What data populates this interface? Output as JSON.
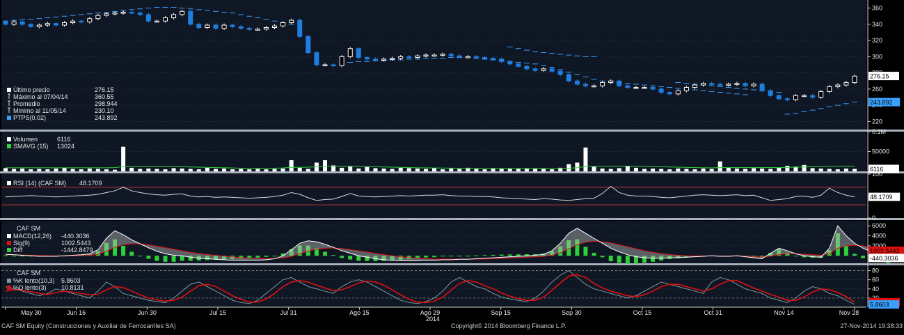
{
  "colors": {
    "background": "#000000",
    "panel": "#0f1624",
    "grid": "#3a4250",
    "separator": "#aab2bf",
    "candle_down": "#1e7fe0",
    "candle_up": "#ffffff",
    "ptps": "#3aa0ff",
    "volume_bar": "#ffffff",
    "smavg": "#2fd13a",
    "rsi_line": "#d9d9d9",
    "rsi_band": "#c03030",
    "macd_line": "#ffffff",
    "signal_line": "#e01010",
    "diff_bar": "#2fd13a",
    "k_line": "#7a9aa0",
    "d_line": "#e01010",
    "label_bg": "#ffffff",
    "label_bg_blue": "#3aa0ff",
    "label_bg_red": "#e01010",
    "label_bg_green": "#2fd13a"
  },
  "x_axis": {
    "labels": [
      "May 30",
      "Jun 16",
      "Jun 30",
      "Jul 15",
      "Jul 31",
      "Ago 15",
      "Ago 29",
      "Sep 15",
      "Sep 30",
      "Oct 15",
      "Oct 31",
      "Nov 14",
      "Nov 28"
    ],
    "year": "2014"
  },
  "footer": {
    "left": "CAF SM Equity (Construcciones y Auxiliar de Ferrocarriles SA)",
    "center": "Copyright© 2014 Bloomberg Finance L.P.",
    "right": "27-Nov-2014 19:38:33"
  },
  "chart_data": [
    {
      "type": "candlestick",
      "panel": "price",
      "ylim": [
        210,
        370
      ],
      "yticks": [
        "360",
        "340",
        "320",
        "300",
        "280",
        "260",
        "240",
        "220"
      ],
      "legend": [
        {
          "label": "Último precio",
          "value": "276.15",
          "icon": "box-white"
        },
        {
          "label": "Máximo al 07/04/14",
          "value": "360.55",
          "icon": "max"
        },
        {
          "label": "Promedio",
          "value": "298.944",
          "icon": "avg"
        },
        {
          "label": "Mínimo al 11/05/14",
          "value": "230.10",
          "icon": "min"
        },
        {
          "label": "PTPS(0.02)",
          "value": "243.892",
          "icon": "box-blue"
        }
      ],
      "last_value_label": "276.15",
      "ptps_value_label": "243.892",
      "close": [
        340,
        343,
        340,
        337,
        339,
        341,
        339,
        342,
        344,
        343,
        347,
        351,
        353,
        354,
        355,
        354,
        352,
        344,
        344,
        348,
        352,
        356,
        340,
        336,
        339,
        335,
        339,
        337,
        335,
        334,
        334,
        336,
        338,
        342,
        345,
        325,
        305,
        290,
        290,
        289,
        300,
        310,
        299,
        297,
        296,
        297,
        298,
        300,
        299,
        301,
        302,
        302,
        303,
        301,
        300,
        300,
        299,
        298,
        297,
        294,
        291,
        288,
        285,
        283,
        285,
        282,
        278,
        270,
        266,
        264,
        264,
        268,
        270,
        264,
        262,
        262,
        262,
        260,
        256,
        254,
        258,
        262,
        265,
        267,
        266,
        265,
        266,
        267,
        264,
        266,
        258,
        252,
        248,
        247,
        252,
        252,
        250,
        257,
        263,
        265,
        268,
        276
      ],
      "ptps": [
        344,
        345,
        346,
        346,
        347,
        348,
        349,
        350,
        351,
        352,
        353,
        354,
        355,
        356,
        357,
        358,
        359,
        360,
        361,
        361,
        361,
        360,
        359,
        358,
        357,
        356,
        355,
        354,
        352,
        350,
        348,
        346,
        344,
        342,
        340,
        "",
        "",
        "",
        "",
        "",
        "",
        293,
        294,
        294,
        295,
        295,
        296,
        296,
        297,
        297,
        298,
        298,
        298,
        299,
        299,
        "",
        298,
        297,
        296,
        295,
        294,
        293,
        292,
        291,
        289,
        287,
        284,
        281,
        278,
        275,
        272,
        270,
        269,
        268,
        267,
        266,
        265,
        264,
        263,
        262,
        261,
        260,
        259,
        258,
        257,
        256,
        255,
        254,
        253,
        "",
        "",
        "",
        "",
        229,
        230,
        232,
        234,
        236,
        238,
        240,
        242,
        244
      ],
      "ptps_upper_after": [
        312,
        310,
        308,
        306,
        305,
        304,
        303,
        302,
        301,
        300,
        300
      ],
      "ptps_upper_late": [
        268,
        267,
        266,
        265,
        264,
        263,
        262,
        261,
        260,
        259,
        258,
        257,
        256
      ]
    },
    {
      "type": "bar",
      "panel": "volume",
      "ylim": [
        0,
        100000
      ],
      "yticks": [
        "0.1M",
        "50000"
      ],
      "legend": [
        {
          "label": "Volumen",
          "value": "6116",
          "icon": "box-white"
        },
        {
          "label": "SMAVG (15)",
          "value": "13024",
          "icon": "box-green"
        }
      ],
      "last_value_label": "6116",
      "values": [
        8000,
        6000,
        7000,
        5000,
        6000,
        5000,
        7000,
        9000,
        6000,
        5000,
        7000,
        6000,
        5000,
        4000,
        62000,
        9000,
        6000,
        7000,
        6000,
        5000,
        8000,
        7000,
        6000,
        5000,
        9000,
        6000,
        7000,
        5000,
        6000,
        5000,
        6000,
        5000,
        6000,
        7000,
        28000,
        9000,
        6000,
        22000,
        28000,
        15000,
        9000,
        12000,
        7000,
        11000,
        8000,
        7000,
        6000,
        9000,
        8000,
        7000,
        6000,
        8000,
        5000,
        7000,
        6000,
        9000,
        6000,
        5000,
        8000,
        6000,
        7000,
        6000,
        8000,
        7000,
        6000,
        5000,
        9000,
        18000,
        22000,
        60000,
        12000,
        7000,
        6000,
        8000,
        14000,
        9000,
        6000,
        7000,
        6000,
        5000,
        7000,
        6000,
        5000,
        7000,
        6000,
        25000,
        9000,
        7000,
        6000,
        8000,
        7000,
        6000,
        9000,
        14000,
        12000,
        16000,
        8000,
        7000,
        6000,
        5000,
        7000,
        6116
      ],
      "smavg": [
        9000,
        9000,
        9000,
        9000,
        9000,
        9000,
        9000,
        9000,
        9000,
        9000,
        9000,
        9000,
        9000,
        9500,
        12000,
        12000,
        12000,
        12000,
        12000,
        12000,
        12000,
        11500,
        11000,
        10500,
        10000,
        9500,
        9000,
        8500,
        8000,
        8000,
        8000,
        8000,
        8000,
        8500,
        10000,
        10000,
        10500,
        11500,
        12500,
        13000,
        13000,
        13000,
        12500,
        12000,
        11500,
        11000,
        10500,
        10000,
        9500,
        9000,
        8800,
        8600,
        8400,
        8200,
        8000,
        7800,
        7600,
        7400,
        7200,
        7000,
        7000,
        7000,
        7000,
        7000,
        7000,
        7000,
        7200,
        8000,
        9000,
        12000,
        12500,
        12800,
        13000,
        13000,
        13200,
        13000,
        12500,
        12000,
        11500,
        11000,
        10500,
        10000,
        9500,
        9000,
        8800,
        9500,
        9500,
        9500,
        9500,
        9500,
        9500,
        9500,
        9500,
        10000,
        10500,
        11000,
        11500,
        12000,
        12500,
        13000,
        13024,
        13024
      ]
    },
    {
      "type": "line",
      "panel": "rsi",
      "ylim": [
        0,
        100
      ],
      "yticks": [
        "100",
        "50",
        "0"
      ],
      "bands": [
        70,
        30
      ],
      "legend": [
        {
          "label": "RSI (14) (CAF SM)",
          "value": "48.1709",
          "icon": "box-white"
        }
      ],
      "last_value_label": "48.1709",
      "values": [
        48,
        49,
        50,
        51,
        50,
        49,
        48,
        49,
        50,
        51,
        52,
        54,
        58,
        62,
        70,
        62,
        58,
        55,
        53,
        52,
        54,
        55,
        50,
        48,
        49,
        47,
        48,
        47,
        46,
        45,
        46,
        47,
        49,
        52,
        58,
        54,
        46,
        40,
        42,
        43,
        49,
        56,
        50,
        49,
        48,
        49,
        50,
        51,
        50,
        51,
        52,
        52,
        53,
        51,
        50,
        50,
        49,
        49,
        48,
        46,
        45,
        44,
        43,
        42,
        44,
        43,
        41,
        40,
        42,
        44,
        45,
        56,
        72,
        58,
        52,
        50,
        50,
        49,
        47,
        46,
        48,
        50,
        52,
        53,
        52,
        51,
        52,
        53,
        51,
        52,
        46,
        40,
        42,
        44,
        49,
        50,
        47,
        52,
        68,
        58,
        52,
        48
      ]
    },
    {
      "type": "line",
      "panel": "macd",
      "ylim": [
        -1500,
        7000
      ],
      "yticks": [
        "6000",
        "4000",
        "2000",
        "0"
      ],
      "title": "CAF SM",
      "legend": [
        {
          "label": "MACD(12,26)",
          "value": "-440.3036",
          "icon": "box-white"
        },
        {
          "label": "Sig(9)",
          "value": "1002.5443",
          "icon": "box-red"
        },
        {
          "label": "Diff",
          "value": "-1442.8479",
          "icon": "box-green"
        }
      ],
      "label_signal": "1002.5443",
      "label_macd": "-440.3036",
      "macd": [
        300,
        200,
        100,
        0,
        -100,
        -100,
        -100,
        0,
        100,
        200,
        400,
        1200,
        3500,
        5000,
        4200,
        3200,
        2400,
        1600,
        900,
        400,
        100,
        0,
        -300,
        -500,
        -600,
        -700,
        -800,
        -900,
        -900,
        -900,
        -900,
        -800,
        -600,
        0,
        1200,
        2500,
        3000,
        2800,
        2300,
        1700,
        1000,
        500,
        0,
        -300,
        -600,
        -800,
        -900,
        -1000,
        -1000,
        -1000,
        -900,
        -900,
        -800,
        -800,
        -700,
        -700,
        -600,
        -500,
        -400,
        -300,
        -200,
        -100,
        0,
        100,
        300,
        1000,
        2500,
        4500,
        5500,
        4500,
        3500,
        2500,
        1500,
        800,
        200,
        -200,
        -400,
        -500,
        -500,
        -400,
        -400,
        -300,
        -200,
        -100,
        0,
        -100,
        -100,
        0,
        -200,
        -400,
        -600,
        500,
        1500,
        1000,
        400,
        0,
        -200,
        -300,
        1500,
        6000,
        4000,
        2500,
        1500,
        800,
        200,
        -440
      ],
      "signal": [
        200,
        200,
        150,
        100,
        50,
        0,
        -20,
        -20,
        0,
        40,
        100,
        300,
        900,
        1700,
        2200,
        2400,
        2400,
        2200,
        1900,
        1600,
        1300,
        1000,
        700,
        450,
        250,
        80,
        -80,
        -230,
        -350,
        -450,
        -530,
        -580,
        -580,
        -460,
        -120,
        420,
        950,
        1300,
        1500,
        1550,
        1450,
        1250,
        1000,
        740,
        470,
        220,
        0,
        -200,
        -350,
        -480,
        -560,
        -630,
        -660,
        -690,
        -690,
        -690,
        -670,
        -640,
        -590,
        -530,
        -460,
        -390,
        -310,
        -230,
        -120,
        100,
        600,
        1400,
        2200,
        2700,
        2900,
        2800,
        2600,
        2200,
        1800,
        1400,
        1000,
        700,
        450,
        250,
        100,
        0,
        -40,
        -50,
        -40,
        -50,
        -60,
        -50,
        -80,
        -150,
        -240,
        -90,
        230,
        390,
        390,
        310,
        210,
        100,
        400,
        1500,
        2000,
        2100,
        1980,
        1740,
        1430,
        1002
      ]
    },
    {
      "type": "line",
      "panel": "stochastic",
      "ylim": [
        0,
        90
      ],
      "yticks": [
        "80",
        "60",
        "40",
        "20"
      ],
      "title": "CAF SM",
      "legend": [
        {
          "label": "%K lento(10,3)",
          "value": "5.8603",
          "icon": "box-grey"
        },
        {
          "label": "%D lento(3)",
          "value": "10.8131",
          "icon": "box-red"
        }
      ],
      "label_d": "10.8131",
      "label_k": "5.8603",
      "k": [
        45,
        40,
        35,
        30,
        25,
        30,
        40,
        35,
        30,
        25,
        20,
        35,
        55,
        45,
        30,
        25,
        20,
        15,
        12,
        10,
        20,
        35,
        50,
        55,
        45,
        35,
        25,
        15,
        10,
        8,
        15,
        30,
        45,
        60,
        65,
        55,
        45,
        40,
        35,
        30,
        45,
        55,
        60,
        55,
        45,
        35,
        25,
        15,
        10,
        8,
        12,
        20,
        35,
        55,
        65,
        55,
        45,
        40,
        30,
        22,
        18,
        15,
        12,
        20,
        35,
        55,
        70,
        80,
        65,
        50,
        40,
        35,
        30,
        25,
        20,
        25,
        35,
        45,
        55,
        50,
        45,
        40,
        35,
        30,
        55,
        65,
        60,
        50,
        40,
        35,
        30,
        20,
        15,
        10,
        20,
        35,
        45,
        40,
        30,
        25,
        15,
        6
      ],
      "d": [
        35,
        38,
        37,
        34,
        30,
        28,
        32,
        35,
        33,
        30,
        27,
        28,
        38,
        45,
        43,
        35,
        27,
        20,
        16,
        13,
        15,
        22,
        35,
        47,
        50,
        45,
        35,
        25,
        17,
        11,
        11,
        18,
        30,
        45,
        55,
        58,
        55,
        48,
        42,
        36,
        38,
        45,
        53,
        57,
        55,
        48,
        38,
        27,
        17,
        11,
        10,
        13,
        22,
        37,
        52,
        58,
        55,
        47,
        40,
        31,
        24,
        19,
        15,
        15,
        22,
        37,
        53,
        68,
        71,
        65,
        52,
        42,
        35,
        30,
        25,
        23,
        27,
        35,
        45,
        50,
        50,
        45,
        40,
        35,
        40,
        50,
        58,
        58,
        50,
        42,
        35,
        28,
        22,
        15,
        15,
        22,
        33,
        40,
        38,
        32,
        23,
        11
      ]
    }
  ]
}
